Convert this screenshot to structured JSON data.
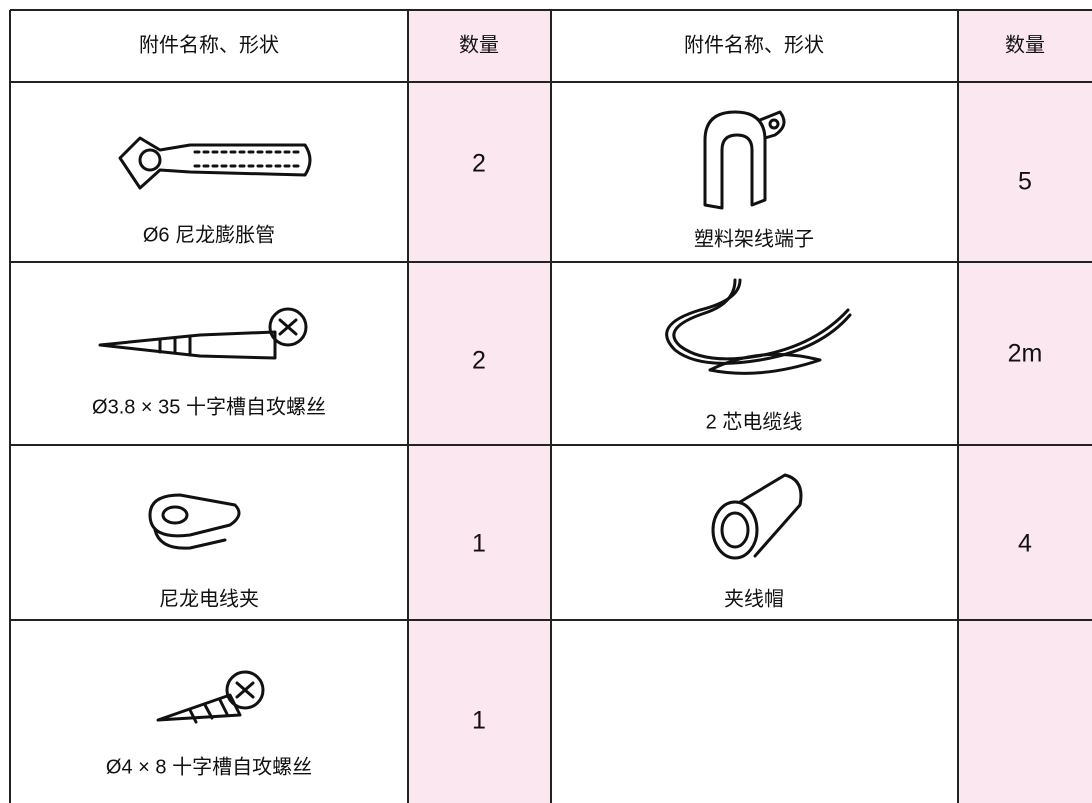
{
  "header": [
    "附件名称、形状",
    "数量",
    "附件名称、形状",
    "数量"
  ],
  "rows": [
    {
      "left": {
        "name": "Ø6 尼龙膨胀管",
        "qty": 2
      },
      "right": {
        "name": "塑料架线端子",
        "qty": 5
      }
    },
    {
      "left": {
        "name": "Ø3.8 × 35 十字槽自攻螺丝",
        "qty": 2
      },
      "right": {
        "name": "2 芯电缆线",
        "qty": "2m"
      }
    },
    {
      "left": {
        "name": "尼龙电线夹",
        "qty": 1
      },
      "right": {
        "name": "夹线帽",
        "qty": 4
      }
    },
    {
      "left": {
        "name": "Ø4 × 8 十字槽自攻螺丝",
        "qty": 1
      }
    }
  ]
}
